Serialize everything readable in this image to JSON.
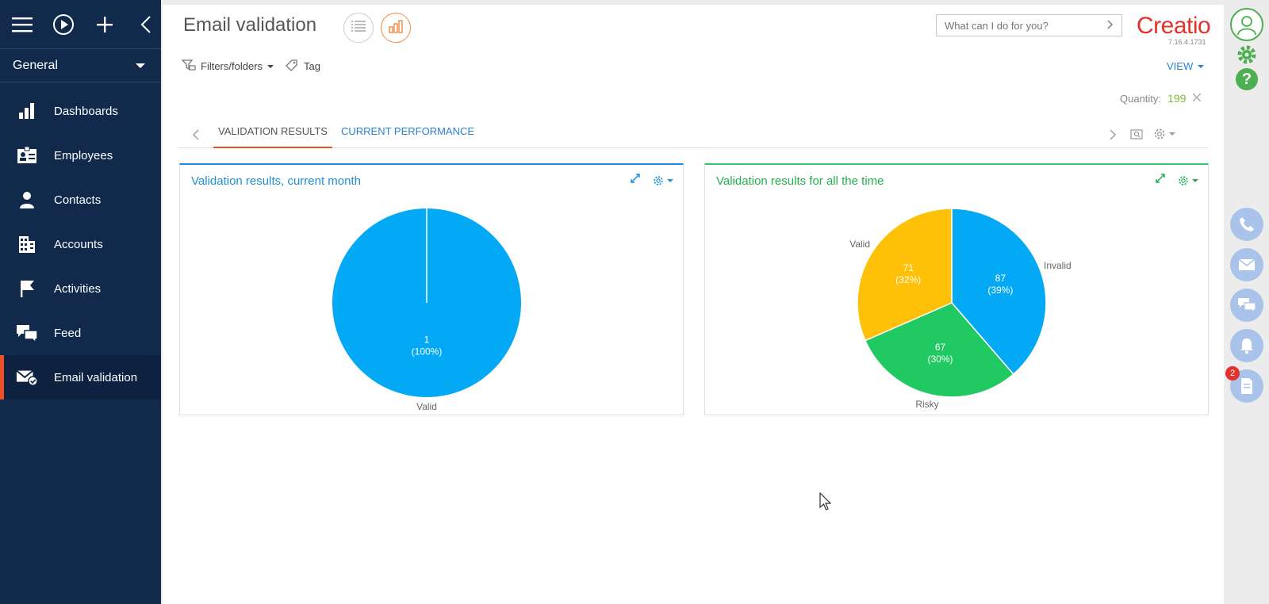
{
  "sidebar": {
    "workspace": "General",
    "items": [
      {
        "label": "Dashboards",
        "icon": "bar-chart-icon"
      },
      {
        "label": "Employees",
        "icon": "employee-card-icon"
      },
      {
        "label": "Contacts",
        "icon": "person-icon"
      },
      {
        "label": "Accounts",
        "icon": "building-icon"
      },
      {
        "label": "Activities",
        "icon": "flag-icon"
      },
      {
        "label": "Feed",
        "icon": "chat-bubbles-icon"
      },
      {
        "label": "Email validation",
        "icon": "envelope-check-icon",
        "active": true
      }
    ]
  },
  "header": {
    "title": "Email validation",
    "search_placeholder": "What can I do for you?",
    "logo": "Creatio",
    "version": "7.16.4.1731",
    "filters_label": "Filters/folders",
    "tag_label": "Tag",
    "view_label": "VIEW",
    "quantity_label": "Quantity:",
    "quantity_value": "199"
  },
  "tabs": [
    {
      "label": "VALIDATION RESULTS",
      "active": true
    },
    {
      "label": "CURRENT PERFORMANCE",
      "active": false
    }
  ],
  "rail": {
    "notification_count": "2"
  },
  "colors": {
    "sidebar_bg": "#112a4c",
    "accent": "#f04e23",
    "blue": "#03a9f4",
    "green": "#21c962",
    "yellow": "#ffc107"
  },
  "chart_data": [
    {
      "type": "pie",
      "title": "Validation results, current month",
      "slices": [
        {
          "label": "Valid",
          "value": 1,
          "percent": "100%",
          "color": "#03a9f4"
        }
      ]
    },
    {
      "type": "pie",
      "title": "Validation results for all the time",
      "slices": [
        {
          "label": "Invalid",
          "value": 87,
          "percent": "39%",
          "color": "#03a9f4"
        },
        {
          "label": "Risky",
          "value": 67,
          "percent": "30%",
          "color": "#21c962"
        },
        {
          "label": "Valid",
          "value": 71,
          "percent": "32%",
          "color": "#ffc107"
        }
      ]
    }
  ]
}
